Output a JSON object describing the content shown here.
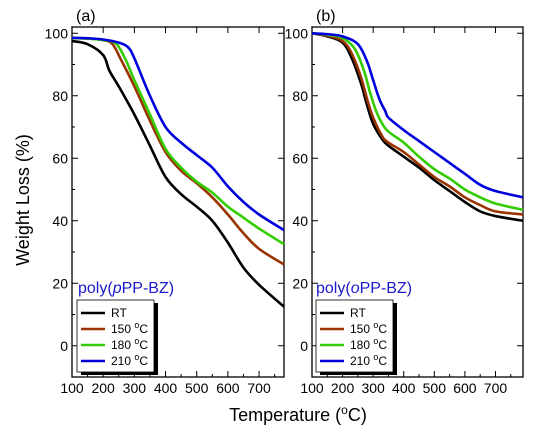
{
  "chart_data": [
    {
      "type": "line",
      "panel_label": "(a)",
      "sample_label": {
        "prefix": "poly(",
        "italic": "p",
        "suffix": "PP-BZ)"
      },
      "xlabel": {
        "main": "Temperature (",
        "sup": "o",
        "end": "C)"
      },
      "ylabel": "Weight Loss (%)",
      "xlim": [
        100,
        780
      ],
      "ylim": [
        -10,
        102
      ],
      "xticks": [
        100,
        200,
        300,
        400,
        500,
        600,
        700
      ],
      "yticks": [
        0,
        20,
        40,
        60,
        80,
        100
      ],
      "legend_position": "bottom-left",
      "series": [
        {
          "name": "RT",
          "sup": "",
          "unit": "",
          "color": "#000000",
          "x": [
            100,
            150,
            200,
            220,
            250,
            300,
            350,
            400,
            450,
            500,
            550,
            600,
            650,
            700,
            780
          ],
          "y": [
            97.5,
            96.5,
            93,
            88,
            83,
            74,
            64,
            54,
            48.5,
            44.5,
            40,
            33,
            25,
            19.5,
            12.5
          ]
        },
        {
          "name": "150 ",
          "sup": "o",
          "unit": "C",
          "color": "#993300",
          "x": [
            100,
            150,
            200,
            230,
            260,
            300,
            350,
            400,
            450,
            500,
            550,
            600,
            650,
            700,
            780
          ],
          "y": [
            98.5,
            98.3,
            97.8,
            96.5,
            91,
            83,
            72,
            62,
            56,
            52,
            47.5,
            42,
            36,
            31,
            26
          ]
        },
        {
          "name": "180 ",
          "sup": "o",
          "unit": "C",
          "color": "#33cc00",
          "x": [
            100,
            150,
            200,
            240,
            270,
            300,
            350,
            400,
            450,
            500,
            550,
            600,
            650,
            700,
            780
          ],
          "y": [
            98.5,
            98.3,
            97.8,
            96.8,
            92,
            85,
            74,
            63,
            57,
            52.5,
            49,
            44.5,
            41,
            37.5,
            32.5
          ]
        },
        {
          "name": "210 ",
          "sup": "o",
          "unit": "C",
          "color": "#0000dd",
          "x": [
            100,
            150,
            200,
            250,
            280,
            300,
            350,
            400,
            450,
            500,
            550,
            600,
            650,
            700,
            780
          ],
          "y": [
            98.5,
            98.4,
            98,
            97,
            95.5,
            92,
            80,
            70,
            65,
            61,
            57,
            51,
            46,
            42,
            37
          ]
        }
      ]
    },
    {
      "type": "line",
      "panel_label": "(b)",
      "sample_label": {
        "prefix": "poly(",
        "italic": "o",
        "suffix": "PP-BZ)"
      },
      "xlabel": {
        "main": "Temperature (",
        "sup": "o",
        "end": "C)"
      },
      "ylabel": "Weight Loss (%)",
      "xlim": [
        100,
        790
      ],
      "ylim": [
        -10,
        102
      ],
      "xticks": [
        100,
        200,
        300,
        400,
        500,
        600,
        700
      ],
      "yticks": [
        0,
        20,
        40,
        60,
        80,
        100
      ],
      "legend_position": "bottom-left",
      "series": [
        {
          "name": "RT",
          "sup": "",
          "unit": "",
          "color": "#000000",
          "x": [
            100,
            150,
            200,
            230,
            260,
            280,
            300,
            330,
            350,
            400,
            450,
            500,
            550,
            600,
            650,
            700,
            790
          ],
          "y": [
            100,
            99,
            97,
            92,
            84,
            77,
            71,
            66,
            64,
            60.5,
            57,
            53,
            49.5,
            46,
            43,
            41.5,
            40
          ]
        },
        {
          "name": "150 ",
          "sup": "o",
          "unit": "C",
          "color": "#993300",
          "x": [
            100,
            150,
            200,
            230,
            260,
            280,
            300,
            330,
            350,
            400,
            450,
            500,
            550,
            600,
            650,
            700,
            790
          ],
          "y": [
            100,
            99.2,
            97.5,
            93.5,
            86,
            79,
            73,
            67,
            65,
            62,
            58,
            54,
            51,
            47.5,
            45,
            43,
            42
          ]
        },
        {
          "name": "180 ",
          "sup": "o",
          "unit": "C",
          "color": "#33cc00",
          "x": [
            100,
            150,
            200,
            240,
            270,
            290,
            310,
            330,
            350,
            400,
            450,
            500,
            550,
            600,
            650,
            700,
            790
          ],
          "y": [
            100,
            99.5,
            98.5,
            95,
            88,
            81,
            75,
            71,
            68.5,
            65,
            60.5,
            56.5,
            53.5,
            50,
            47.5,
            45.5,
            43.5
          ]
        },
        {
          "name": "210 ",
          "sup": "o",
          "unit": "C",
          "color": "#0000dd",
          "x": [
            100,
            150,
            200,
            250,
            280,
            300,
            320,
            340,
            350,
            400,
            450,
            500,
            550,
            600,
            650,
            700,
            790
          ],
          "y": [
            100,
            99.7,
            99,
            96.5,
            91,
            85,
            79,
            75,
            73,
            69,
            65.5,
            62,
            58.5,
            55,
            51.5,
            49.5,
            47.5
          ]
        }
      ]
    }
  ]
}
